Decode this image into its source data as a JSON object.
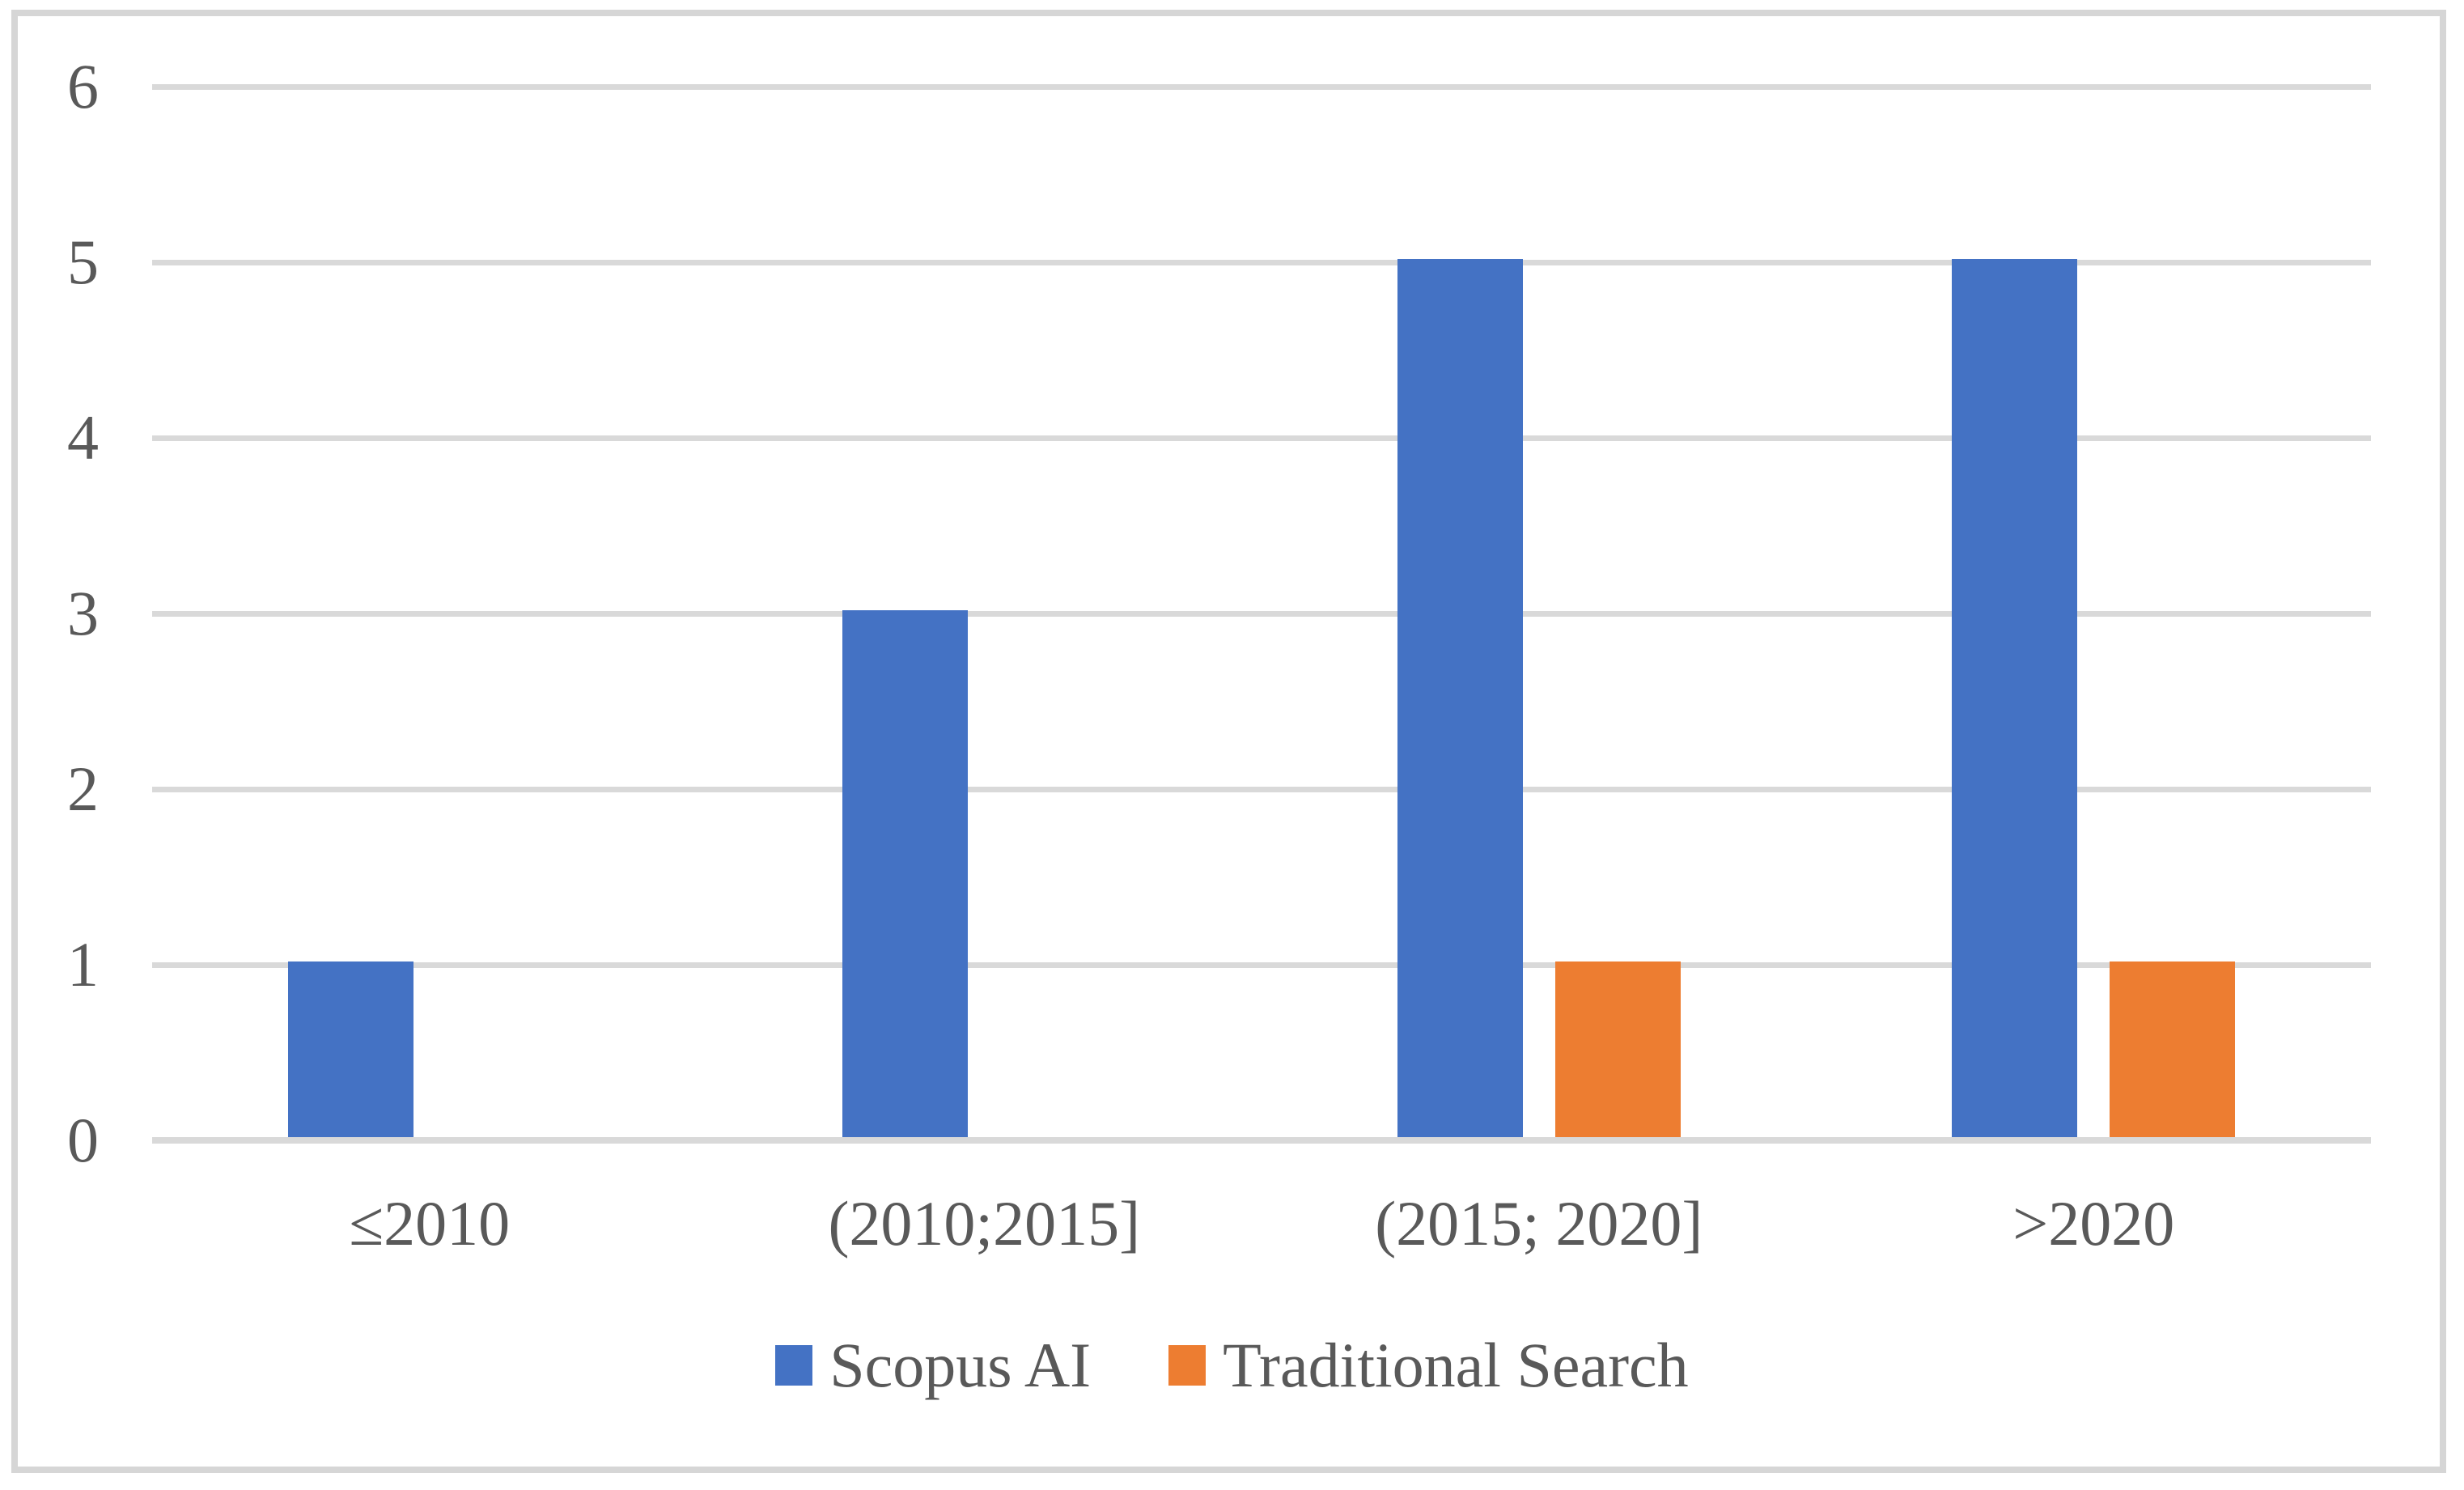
{
  "chart_data": {
    "type": "bar",
    "title": "",
    "xlabel": "",
    "ylabel": "",
    "categories": [
      "≤2010",
      "(2010;2015]",
      "(2015; 2020]",
      ">2020"
    ],
    "series": [
      {
        "name": "Scopus AI",
        "color": "#4472C4",
        "values": [
          1,
          3,
          5,
          5
        ]
      },
      {
        "name": "Traditional Search",
        "color": "#ED7D31",
        "values": [
          0,
          0,
          1,
          1
        ]
      }
    ],
    "ylim": [
      0,
      6
    ],
    "yticks": [
      0,
      1,
      2,
      3,
      4,
      5,
      6
    ],
    "grid": true,
    "legend_position": "bottom",
    "colors": {
      "gridline": "#D9D9D9",
      "axis_text": "#595959",
      "frame_border": "#D6D6D6",
      "background": "#FFFFFF"
    }
  }
}
